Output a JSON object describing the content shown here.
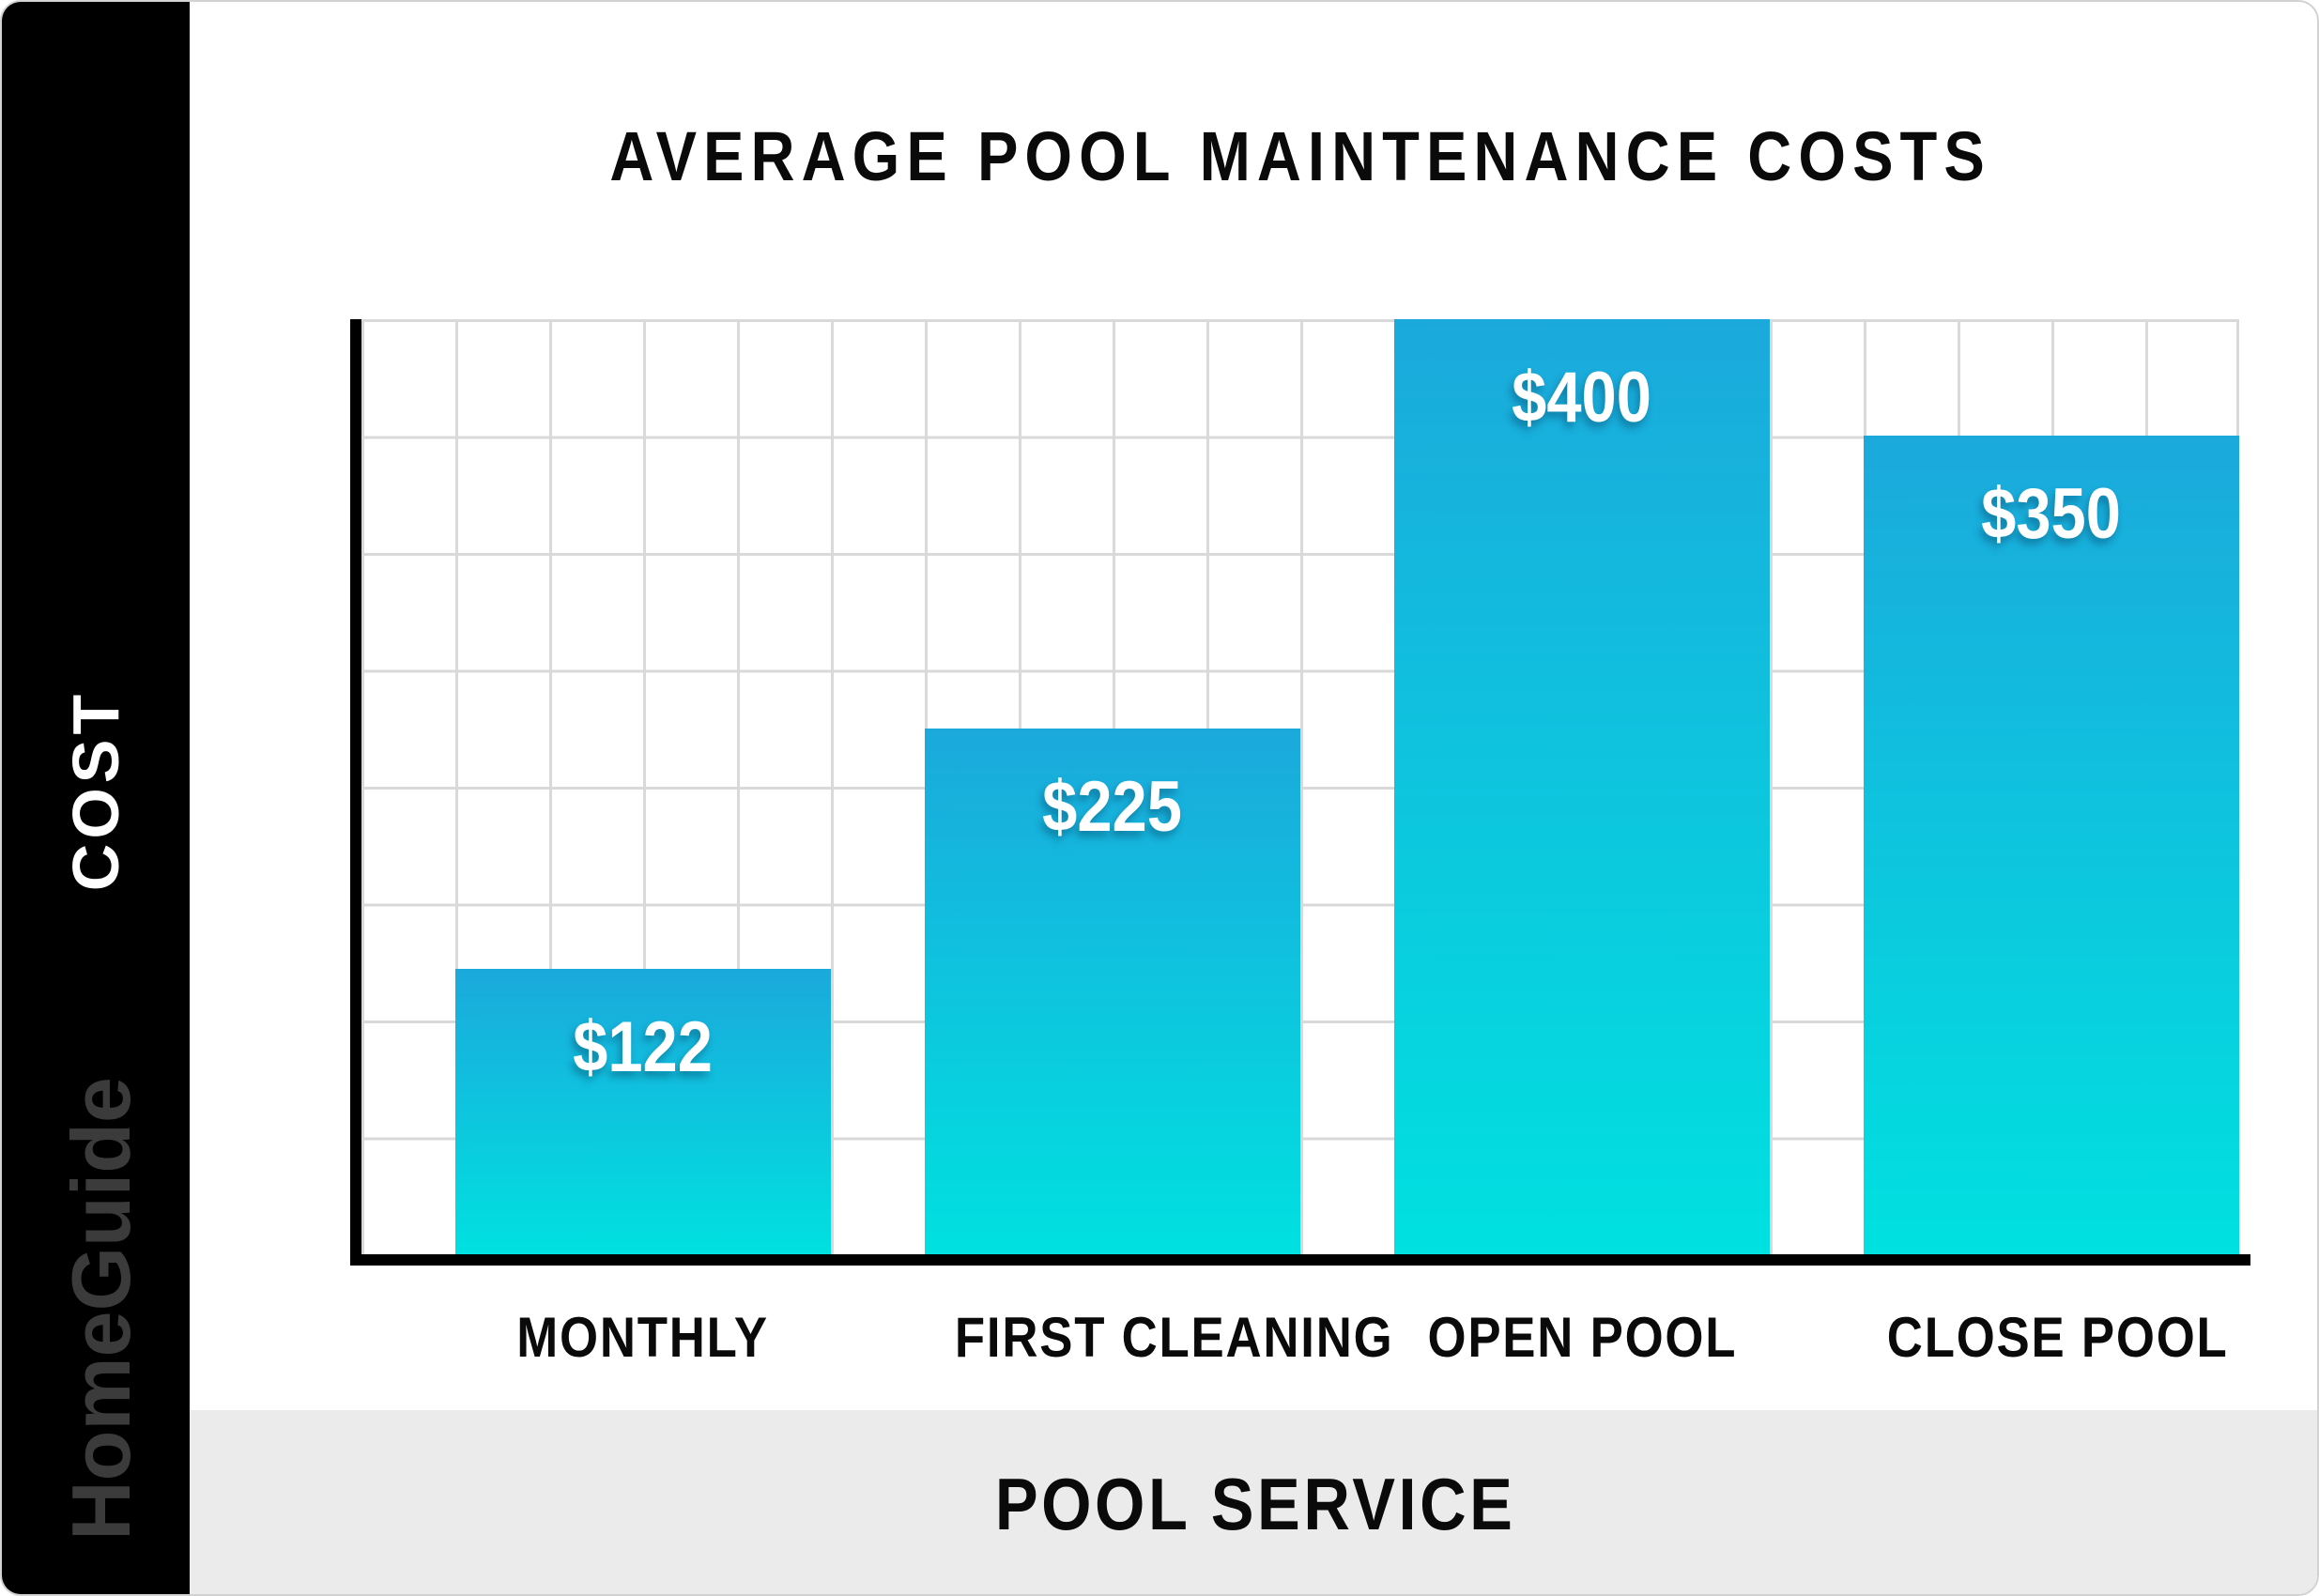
{
  "brand": {
    "name": "HomeGuide"
  },
  "colors": {
    "sidebar_bg": "#000000",
    "watermark_text": "#3b3b3b",
    "bar_gradient_top": "#1BA9DC",
    "bar_gradient_bottom": "#00E1E0",
    "gridline": "#d9d9d9",
    "axis": "#000000",
    "footer_band_bg": "#ebebeb",
    "value_label_text": "#ffffff",
    "title_text": "#0a0a0a"
  },
  "chart_data": {
    "type": "bar",
    "title": "AVERAGE POOL MAINTENANCE COSTS",
    "categories": [
      "MONTHLY",
      "FIRST CLEANING",
      "OPEN POOL",
      "CLOSE POOL"
    ],
    "values": [
      122,
      225,
      400,
      350
    ],
    "value_labels": [
      "$122",
      "$225",
      "$400",
      "$350"
    ],
    "xlabel": "POOL SERVICE",
    "ylabel": "COST",
    "ylim": [
      0,
      400
    ],
    "y_gridline_step": 50,
    "x_columns": 20,
    "grid": "on",
    "legend_position": "none",
    "y_tick_labels_shown": false
  }
}
